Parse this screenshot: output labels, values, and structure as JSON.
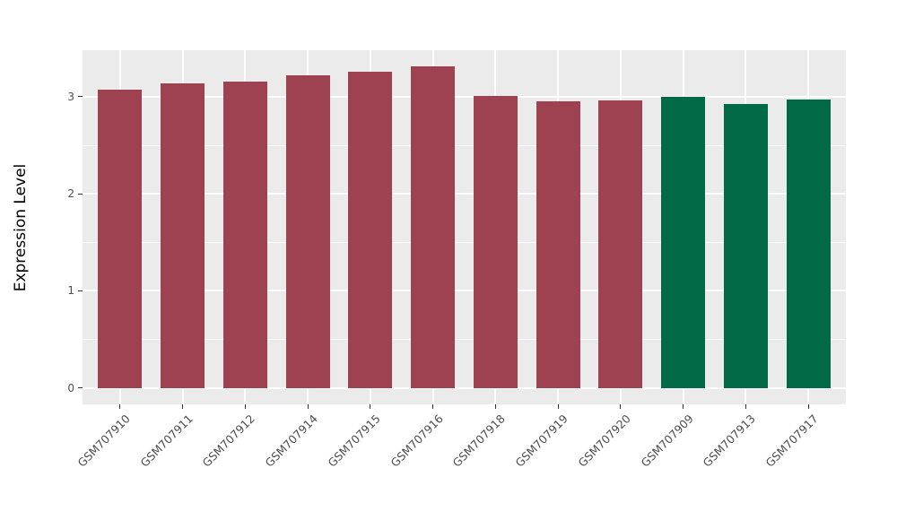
{
  "figure": {
    "background": "#FFFFFF",
    "panel_background": "#EBEBEB",
    "grid_color": "#FFFFFF",
    "tick_mark_color": "#333333",
    "tick_label_color": "#4D4D4D",
    "axis_title_color": "#000000",
    "bar_color_red": "#9E4150",
    "bar_color_green": "#006946"
  },
  "chart_data": {
    "type": "bar",
    "xlabel": "",
    "ylabel": "Expression Level",
    "categories": [
      "GSM707910",
      "GSM707911",
      "GSM707912",
      "GSM707914",
      "GSM707915",
      "GSM707916",
      "GSM707918",
      "GSM707919",
      "GSM707920",
      "GSM707909",
      "GSM707913",
      "GSM707917"
    ],
    "values": [
      3.07,
      3.14,
      3.16,
      3.22,
      3.26,
      3.31,
      3.01,
      2.95,
      2.96,
      3.0,
      2.93,
      2.97
    ],
    "bar_colors": [
      "#9E4150",
      "#9E4150",
      "#9E4150",
      "#9E4150",
      "#9E4150",
      "#9E4150",
      "#9E4150",
      "#9E4150",
      "#9E4150",
      "#006946",
      "#006946",
      "#006946"
    ],
    "ylim": [
      -0.17,
      3.48
    ],
    "yticks": [
      0,
      1,
      2,
      3
    ],
    "ytick_labels": [
      "0",
      "1",
      "2",
      "3"
    ],
    "yticks_minor": [
      0.5,
      1.5,
      2.5
    ],
    "grid": "major+minor horizontal, major vertical at category centers",
    "legend_position": "none",
    "bar_width_fraction": 0.7,
    "x_label_angle_deg": 45
  }
}
